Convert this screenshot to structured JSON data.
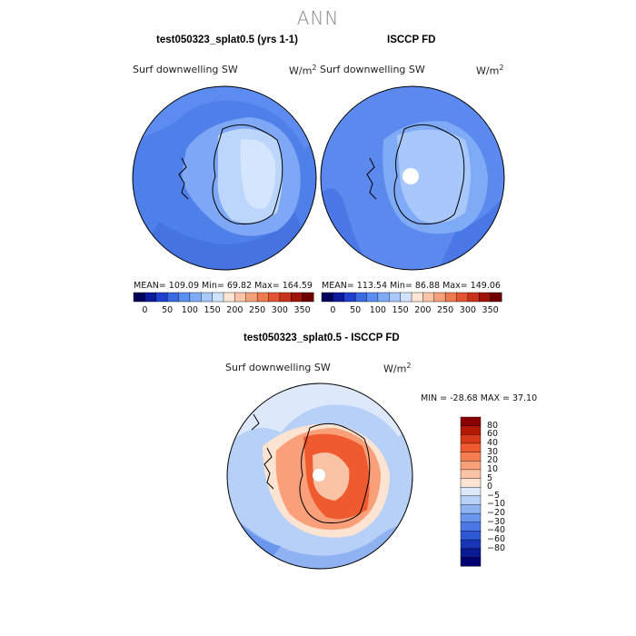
{
  "page_title": "ANN",
  "panel1": {
    "title": "test050323_splat0.5 (yrs 1-1)",
    "variable": "Surf downwelling SW",
    "units": "W/m",
    "units_exp": "2",
    "stats": "MEAN= 109.09  Min=  69.82  Max= 164.59"
  },
  "panel2": {
    "title": "ISCCP FD",
    "variable": "Surf downwelling SW",
    "units": "W/m",
    "units_exp": "2",
    "stats": "MEAN= 113.54  Min=  86.88  Max= 149.06"
  },
  "panel3": {
    "title": "test050323_splat0.5 - ISCCP FD",
    "variable": "Surf downwelling SW",
    "units": "W/m",
    "units_exp": "2",
    "stats": "MIN = -28.68 MAX =  37.10"
  },
  "colorbar_h": {
    "colors": [
      "#00005a",
      "#0a1a9a",
      "#1f3fd0",
      "#3a6ae0",
      "#5a8ef0",
      "#7faaf5",
      "#a8c7fa",
      "#d0e2fc",
      "#fde5d5",
      "#fbc4a8",
      "#f4a07a",
      "#ee7a50",
      "#e25530",
      "#c8321a",
      "#9e1408",
      "#6e0000"
    ],
    "labels": [
      "0",
      "50",
      "100",
      "150",
      "200",
      "250",
      "300",
      "350"
    ]
  },
  "colorbar_v": {
    "colors": [
      "#8a0000",
      "#b21a05",
      "#d63a18",
      "#ef5a2e",
      "#f57d50",
      "#f9a07a",
      "#fbc3a5",
      "#fde3d2",
      "#dde9fb",
      "#b6d0f7",
      "#8fb3f2",
      "#6a96ee",
      "#4a78e6",
      "#2c58d6",
      "#1a36b8",
      "#0a1a90",
      "#000070"
    ],
    "labels": [
      "80",
      "60",
      "40",
      "30",
      "20",
      "10",
      "5",
      "0",
      "−5",
      "−10",
      "−20",
      "−30",
      "−40",
      "−60",
      "−80"
    ]
  }
}
